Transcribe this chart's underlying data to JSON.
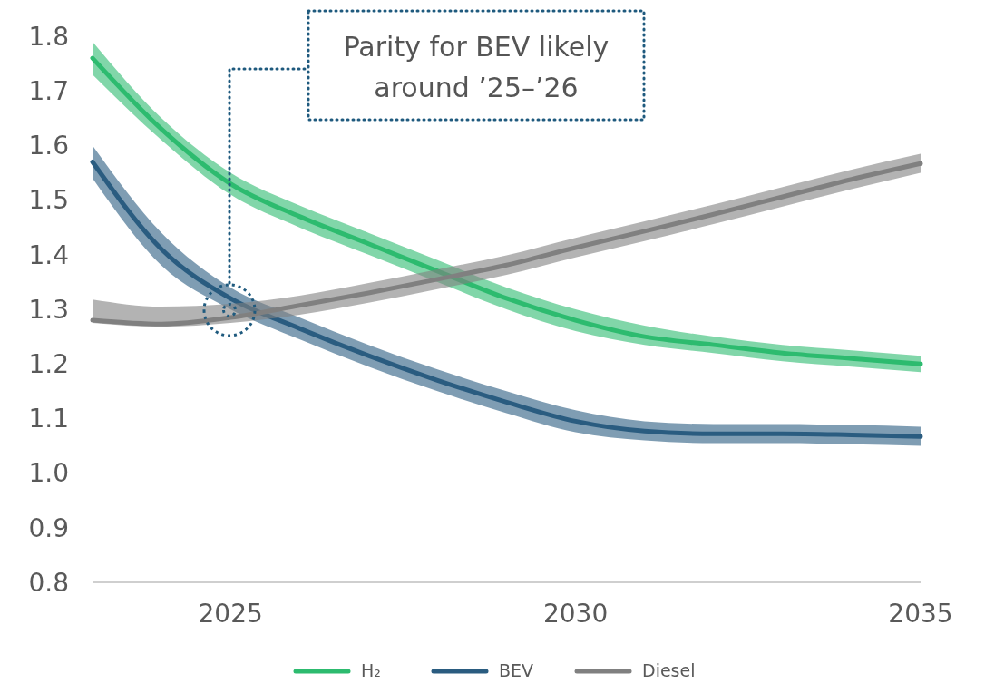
{
  "chart_data": {
    "type": "line",
    "x": [
      2023,
      2024,
      2025,
      2026,
      2027,
      2028,
      2029,
      2030,
      2031,
      2032,
      2033,
      2034,
      2035
    ],
    "xlim": [
      2023,
      2035
    ],
    "xticks": [
      2025,
      2030,
      2035
    ],
    "ylim": [
      0.8,
      1.8
    ],
    "yticks": [
      {
        "value": 0.8,
        "label": "0.8"
      },
      {
        "value": 0.9,
        "label": "0.9"
      },
      {
        "value": 1.0,
        "label": "1.0"
      },
      {
        "value": 1.1,
        "label": "1.1"
      },
      {
        "value": 1.2,
        "label": "1.2"
      },
      {
        "value": 1.3,
        "label": "1.3"
      },
      {
        "value": 1.4,
        "label": "1.4"
      },
      {
        "value": 1.5,
        "label": "1.5"
      },
      {
        "value": 1.6,
        "label": "1.6"
      },
      {
        "value": 1.7,
        "label": "1.7"
      },
      {
        "value": 1.8,
        "label": "1.8"
      }
    ],
    "series": [
      {
        "name": "H₂",
        "color": "#2dbb6f",
        "values": [
          1.76,
          1.63,
          1.53,
          1.47,
          1.42,
          1.37,
          1.32,
          1.28,
          1.25,
          1.235,
          1.22,
          1.21,
          1.2
        ],
        "lower": [
          1.73,
          1.61,
          1.51,
          1.45,
          1.4,
          1.35,
          1.3,
          1.26,
          1.235,
          1.22,
          1.205,
          1.195,
          1.185
        ],
        "upper": [
          1.79,
          1.65,
          1.55,
          1.49,
          1.44,
          1.39,
          1.34,
          1.3,
          1.27,
          1.25,
          1.235,
          1.225,
          1.215
        ]
      },
      {
        "name": "BEV",
        "color": "#2a5c80",
        "values": [
          1.57,
          1.41,
          1.32,
          1.265,
          1.215,
          1.17,
          1.13,
          1.095,
          1.077,
          1.072,
          1.072,
          1.07,
          1.067
        ],
        "lower": [
          1.54,
          1.38,
          1.3,
          1.245,
          1.195,
          1.15,
          1.11,
          1.075,
          1.06,
          1.055,
          1.055,
          1.053,
          1.05
        ],
        "upper": [
          1.6,
          1.44,
          1.34,
          1.285,
          1.235,
          1.19,
          1.15,
          1.115,
          1.095,
          1.09,
          1.09,
          1.088,
          1.085
        ]
      },
      {
        "name": "Diesel",
        "color": "#808080",
        "values": [
          1.28,
          1.273,
          1.285,
          1.307,
          1.33,
          1.355,
          1.381,
          1.413,
          1.443,
          1.474,
          1.506,
          1.538,
          1.567
        ],
        "lower": [
          1.275,
          1.268,
          1.275,
          1.29,
          1.312,
          1.337,
          1.363,
          1.395,
          1.425,
          1.456,
          1.488,
          1.52,
          1.55
        ],
        "upper": [
          1.318,
          1.305,
          1.31,
          1.325,
          1.348,
          1.373,
          1.399,
          1.431,
          1.461,
          1.492,
          1.524,
          1.556,
          1.585
        ]
      }
    ],
    "legend": "bottom",
    "grid": false,
    "annotations": [
      "Parity for BEV likely around ’25–’26"
    ]
  }
}
